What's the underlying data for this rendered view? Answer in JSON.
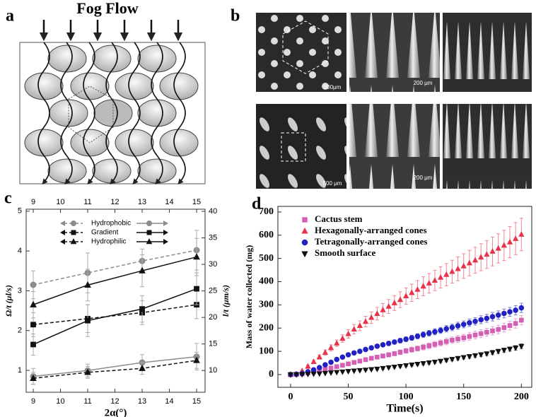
{
  "figure": {
    "panel_labels": [
      "a",
      "b",
      "c",
      "d"
    ],
    "fog_flow": "Fog Flow",
    "scale_bars": [
      "500μm",
      "200 μm",
      "500 μm",
      "200 μm"
    ]
  },
  "chart_data": [
    {
      "type": "line",
      "x_label": "2α(°)",
      "y_label": "Ω/t (μl/s)",
      "y2_label": "l/t (μm/s)",
      "x": [
        9,
        11,
        13,
        15
      ],
      "xlim": [
        8.74,
        15.31
      ],
      "xticks": [
        9,
        10,
        11,
        12,
        13,
        14,
        15
      ],
      "ylim": [
        0.45,
        5.05
      ],
      "yticks": [
        1,
        2,
        3,
        4,
        5
      ],
      "y2lim": [
        5.9,
        40.4
      ],
      "y2ticks": [
        10,
        15,
        20,
        25,
        30,
        35,
        40
      ],
      "legend": "upper left",
      "series": [
        {
          "name": "Hydrophobic",
          "color": "#8c8c8c",
          "marker": "circle",
          "values": [
            3.15,
            3.45,
            3.75,
            4.02
          ],
          "errors": [
            0.35,
            0.5,
            0.3,
            0.5
          ],
          "values_y2": [
            8.9,
            10,
            11.5,
            12.6
          ],
          "errors_y2": [
            1.5,
            1.2,
            1.5,
            2.5
          ]
        },
        {
          "name": "Gradient",
          "color": "#111111",
          "marker": "square",
          "values": [
            2.15,
            2.3,
            2.45,
            2.65
          ],
          "errors": [
            0.3,
            0.35,
            0.3,
            0.35
          ],
          "values_y2": [
            14.9,
            19.4,
            21.6,
            25.4
          ],
          "errors_y2": [
            2,
            3,
            2.5,
            3
          ]
        },
        {
          "name": "Hydrophilic",
          "color": "#111111",
          "marker": "triangle",
          "values": [
            0.8,
            0.95,
            1.05,
            1.25
          ],
          "errors": [
            0.15,
            0.15,
            0.15,
            0.2
          ],
          "values_y2": [
            22.4,
            26.1,
            28.8,
            31.4
          ],
          "errors_y2": [
            2.5,
            3,
            3,
            3.5
          ]
        }
      ]
    },
    {
      "type": "scatter",
      "x_label": "Time(s)",
      "y_label": "Mass of water collected (mg)",
      "x": [
        0,
        5,
        10,
        15,
        20,
        25,
        30,
        35,
        40,
        45,
        50,
        55,
        60,
        65,
        70,
        75,
        80,
        85,
        90,
        95,
        100,
        105,
        110,
        115,
        120,
        125,
        130,
        135,
        140,
        145,
        150,
        155,
        160,
        165,
        170,
        175,
        180,
        185,
        190,
        195,
        200
      ],
      "xlim": [
        -11,
        209
      ],
      "xticks": [
        0,
        50,
        100,
        150,
        200
      ],
      "ylim": [
        -55,
        724
      ],
      "yticks": [
        0,
        100,
        200,
        300,
        400,
        500,
        600,
        700
      ],
      "legend": "upper left",
      "series": [
        {
          "name": "Cactus stem",
          "color": "#d45fb5",
          "marker": "square",
          "values": [
            0,
            1,
            3,
            7,
            12,
            17,
            23,
            28,
            34,
            40,
            46,
            52,
            58,
            64,
            70,
            75,
            80,
            85,
            90,
            96,
            102,
            107,
            112,
            118,
            124,
            130,
            136,
            142,
            148,
            153,
            158,
            164,
            170,
            176,
            182,
            188,
            194,
            202,
            211,
            220,
            234
          ],
          "errors": [
            0,
            1,
            1,
            2,
            2,
            3,
            3,
            4,
            4,
            5,
            5,
            6,
            6,
            7,
            7,
            8,
            8,
            9,
            9,
            10,
            10,
            11,
            11,
            12,
            12,
            13,
            13,
            14,
            14,
            15,
            15,
            16,
            16,
            17,
            17,
            18,
            18,
            19,
            19,
            20,
            20
          ]
        },
        {
          "name": "Hexagonally-arranged cones",
          "color": "#e8334a",
          "marker": "triangle",
          "values": [
            0,
            2,
            15,
            35,
            55,
            75,
            95,
            115,
            135,
            155,
            175,
            195,
            210,
            228,
            245,
            262,
            278,
            293,
            308,
            322,
            338,
            352,
            366,
            380,
            393,
            405,
            418,
            430,
            443,
            455,
            467,
            480,
            492,
            505,
            517,
            530,
            543,
            556,
            570,
            585,
            603
          ],
          "errors": [
            0,
            2,
            4,
            6,
            7,
            9,
            11,
            13,
            14,
            16,
            18,
            20,
            21,
            23,
            25,
            27,
            28,
            30,
            32,
            34,
            35,
            37,
            39,
            41,
            42,
            44,
            46,
            48,
            49,
            51,
            53,
            55,
            56,
            58,
            60,
            62,
            63,
            65,
            67,
            69,
            70
          ]
        },
        {
          "name": "Tetragonally-arranged cones",
          "color": "#2222c4",
          "marker": "circle",
          "values": [
            0,
            1,
            5,
            12,
            20,
            30,
            42,
            53,
            65,
            75,
            85,
            93,
            100,
            108,
            115,
            122,
            128,
            134,
            140,
            146,
            152,
            158,
            165,
            172,
            178,
            184,
            190,
            197,
            203,
            210,
            216,
            223,
            229,
            236,
            242,
            249,
            256,
            263,
            270,
            277,
            287
          ],
          "errors": [
            0,
            1,
            1,
            2,
            2,
            3,
            3,
            4,
            4,
            5,
            5,
            6,
            6,
            7,
            7,
            8,
            8,
            9,
            9,
            10,
            10,
            11,
            11,
            12,
            12,
            13,
            13,
            14,
            14,
            15,
            15,
            16,
            16,
            17,
            17,
            18,
            18,
            19,
            19,
            20,
            20
          ]
        },
        {
          "name": "Smooth surface",
          "color": "#111111",
          "marker": "triangle-down",
          "values": [
            0,
            0,
            1,
            2,
            3,
            4,
            6,
            8,
            10,
            12,
            14,
            16,
            18,
            20,
            22,
            24,
            27,
            30,
            33,
            36,
            39,
            42,
            45,
            48,
            51,
            54,
            58,
            62,
            66,
            70,
            74,
            78,
            82,
            86,
            90,
            95,
            100,
            105,
            110,
            115,
            122
          ],
          "errors": [
            0,
            0,
            0,
            1,
            1,
            1,
            1,
            2,
            2,
            2,
            2,
            3,
            3,
            3,
            3,
            4,
            4,
            4,
            4,
            5,
            5,
            5,
            5,
            6,
            6,
            6,
            6,
            7,
            7,
            7,
            7,
            8,
            8,
            8,
            8,
            9,
            9,
            9,
            9,
            10,
            10
          ]
        }
      ]
    }
  ]
}
